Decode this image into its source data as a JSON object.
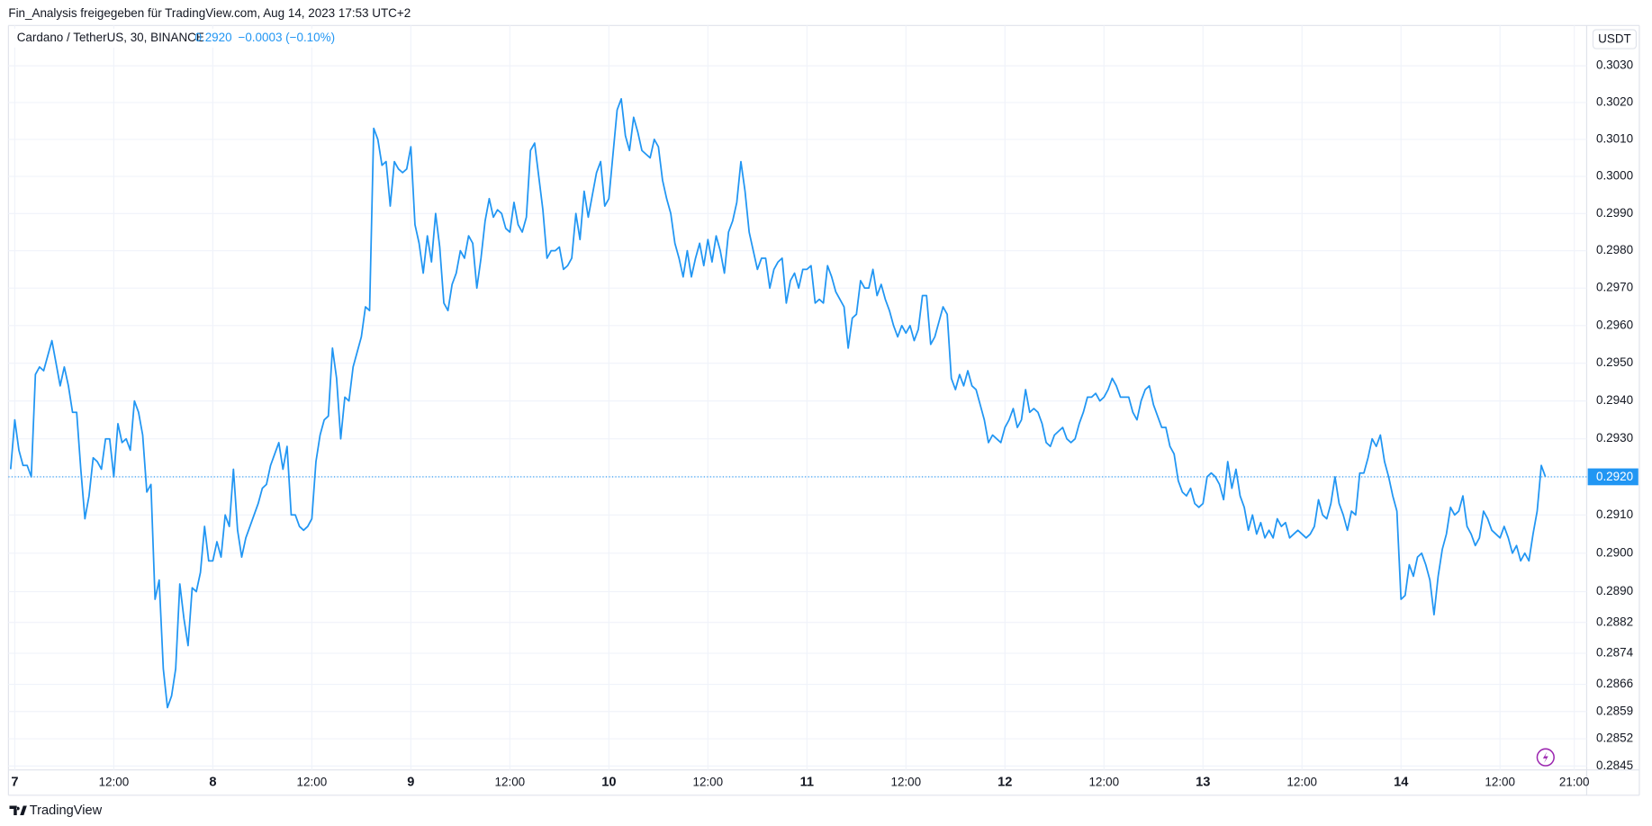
{
  "caption": "Fin_Analysis freigegeben für TradingView.com, Aug 14, 2023 17:53 UTC+2",
  "brand": "TradingView",
  "currency": "USDT",
  "chart_data": {
    "type": "line",
    "title": "Cardano / TetherUS, 30, BINANCE",
    "price": "0.2920",
    "change": "−0.0003 (−0.10%)",
    "log_scale": true,
    "grid": true,
    "xlim": [
      -0.77,
      190.5
    ],
    "xticks": [
      {
        "value": 0,
        "label": "7"
      },
      {
        "value": 12,
        "label": "12:00"
      },
      {
        "value": 24,
        "label": "8"
      },
      {
        "value": 36,
        "label": "12:00"
      },
      {
        "value": 48,
        "label": "9"
      },
      {
        "value": 60,
        "label": "12:00"
      },
      {
        "value": 72,
        "label": "10"
      },
      {
        "value": 84,
        "label": "12:00"
      },
      {
        "value": 96,
        "label": "11"
      },
      {
        "value": 108,
        "label": "12:00"
      },
      {
        "value": 120,
        "label": "12"
      },
      {
        "value": 132,
        "label": "12:00"
      },
      {
        "value": 144,
        "label": "13"
      },
      {
        "value": 156,
        "label": "12:00"
      },
      {
        "value": 168,
        "label": "14"
      },
      {
        "value": 180,
        "label": "12:00"
      },
      {
        "value": 189,
        "label": "21:00"
      }
    ],
    "ylim": [
      0.2844,
      0.3041
    ],
    "yticks": [
      {
        "value": 0.303,
        "label": "0.3030"
      },
      {
        "value": 0.302,
        "label": "0.3020"
      },
      {
        "value": 0.301,
        "label": "0.3010"
      },
      {
        "value": 0.3,
        "label": "0.3000"
      },
      {
        "value": 0.299,
        "label": "0.2990"
      },
      {
        "value": 0.298,
        "label": "0.2980"
      },
      {
        "value": 0.297,
        "label": "0.2970"
      },
      {
        "value": 0.296,
        "label": "0.2960"
      },
      {
        "value": 0.295,
        "label": "0.2950"
      },
      {
        "value": 0.294,
        "label": "0.2940"
      },
      {
        "value": 0.293,
        "label": "0.2930"
      },
      {
        "value": 0.292,
        "label": "0.2920"
      },
      {
        "value": 0.291,
        "label": "0.2910"
      },
      {
        "value": 0.29,
        "label": "0.2900"
      },
      {
        "value": 0.289,
        "label": "0.2890"
      },
      0.2882,
      0.2874,
      0.2866,
      0.2859,
      0.2852,
      0.2845
    ],
    "x": [
      -0.5,
      0,
      0.5,
      1,
      1.5,
      2,
      2.5,
      3,
      3.5,
      4,
      4.5,
      5,
      5.5,
      6,
      6.5,
      7,
      7.5,
      8,
      8.5,
      9,
      9.5,
      10,
      10.5,
      11,
      11.5,
      12,
      12.5,
      13,
      13.5,
      14,
      14.5,
      15,
      15.5,
      16,
      16.5,
      17,
      17.5,
      18,
      18.5,
      19,
      19.5,
      20,
      20.5,
      21,
      21.5,
      22,
      22.5,
      23,
      23.5,
      24,
      24.5,
      25,
      25.5,
      26,
      26.5,
      27,
      27.5,
      28,
      28.5,
      29,
      29.5,
      30,
      30.5,
      31,
      31.5,
      32,
      32.5,
      33,
      33.5,
      34,
      34.5,
      35,
      35.5,
      36,
      36.5,
      37,
      37.5,
      38,
      38.5,
      39,
      39.5,
      40,
      40.5,
      41,
      41.5,
      42,
      42.5,
      43,
      43.5,
      44,
      44.5,
      45,
      45.5,
      46,
      46.5,
      47,
      47.5,
      48,
      48.5,
      49,
      49.5,
      50,
      50.5,
      51,
      51.5,
      52,
      52.5,
      53,
      53.5,
      54,
      54.5,
      55,
      55.5,
      56,
      56.5,
      57,
      57.5,
      58,
      58.5,
      59,
      59.5,
      60,
      60.5,
      61,
      61.5,
      62,
      62.5,
      63,
      63.5,
      64,
      64.5,
      65,
      65.5,
      66,
      66.5,
      67,
      67.5,
      68,
      68.5,
      69,
      69.5,
      70,
      70.5,
      71,
      71.5,
      72,
      72.5,
      73,
      73.5,
      74,
      74.5,
      75,
      75.5,
      76,
      76.5,
      77,
      77.5,
      78,
      78.5,
      79,
      79.5,
      80,
      80.5,
      81,
      81.5,
      82,
      82.5,
      83,
      83.5,
      84,
      84.5,
      85,
      85.5,
      86,
      86.5,
      87,
      87.5,
      88,
      88.5,
      89,
      89.5,
      90,
      90.5,
      91,
      91.5,
      92,
      92.5,
      93,
      93.5,
      94,
      94.5,
      95,
      95.5,
      96,
      96.5,
      97,
      97.5,
      98,
      98.5,
      99,
      99.5,
      100,
      100.5,
      101,
      101.5,
      102,
      102.5,
      103,
      103.5,
      104,
      104.5,
      105,
      105.5,
      106,
      106.5,
      107,
      107.5,
      108,
      108.5,
      109,
      109.5,
      110,
      110.5,
      111,
      111.5,
      112,
      112.5,
      113,
      113.5,
      114,
      114.5,
      115,
      115.5,
      116,
      116.5,
      117,
      117.5,
      118,
      118.5,
      119,
      119.5,
      120,
      120.5,
      121,
      121.5,
      122,
      122.5,
      123,
      123.5,
      124,
      124.5,
      125,
      125.5,
      126,
      126.5,
      127,
      127.5,
      128,
      128.5,
      129,
      129.5,
      130,
      130.5,
      131,
      131.5,
      132,
      132.5,
      133,
      133.5,
      134,
      134.5,
      135,
      135.5,
      136,
      136.5,
      137,
      137.5,
      138,
      138.5,
      139,
      139.5,
      140,
      140.5,
      141,
      141.5,
      142,
      142.5,
      143,
      143.5,
      144,
      144.5,
      145,
      145.5,
      146,
      146.5,
      147,
      147.5,
      148,
      148.5,
      149,
      149.5,
      150,
      150.5,
      151,
      151.5,
      152,
      152.5,
      153,
      153.5,
      154,
      154.5,
      155,
      155.5,
      156,
      156.5,
      157,
      157.5,
      158,
      158.5,
      159,
      159.5,
      160,
      160.5,
      161,
      161.5,
      162,
      162.5,
      163,
      163.5,
      164,
      164.5,
      165,
      165.5,
      166,
      166.5,
      167,
      167.5,
      168,
      168.5,
      169,
      169.5,
      170,
      170.5,
      171,
      171.5,
      172,
      172.5,
      173,
      173.5,
      174,
      174.5,
      175,
      175.5,
      176,
      176.5,
      177,
      177.5,
      178,
      178.5,
      179,
      179.5,
      180,
      180.5,
      181,
      181.5,
      182,
      182.5,
      183,
      183.5,
      184,
      184.5,
      185,
      185.5
    ],
    "series": [
      {
        "color": "#2196f3",
        "values": [
          0.2922,
          0.2935,
          0.2927,
          0.2923,
          0.2923,
          0.292,
          0.2947,
          0.2949,
          0.2948,
          0.2952,
          0.2956,
          0.295,
          0.2944,
          0.2949,
          0.2944,
          0.2937,
          0.2937,
          0.2922,
          0.2909,
          0.2915,
          0.2925,
          0.2924,
          0.2922,
          0.293,
          0.293,
          0.292,
          0.2934,
          0.2929,
          0.293,
          0.2927,
          0.294,
          0.2937,
          0.2931,
          0.2916,
          0.2918,
          0.2888,
          0.2893,
          0.287,
          0.286,
          0.2863,
          0.287,
          0.2892,
          0.2883,
          0.2876,
          0.2891,
          0.289,
          0.2895,
          0.2907,
          0.2898,
          0.2898,
          0.2903,
          0.2899,
          0.291,
          0.2907,
          0.2922,
          0.2906,
          0.2899,
          0.2904,
          0.2907,
          0.291,
          0.2913,
          0.2917,
          0.2918,
          0.2923,
          0.2926,
          0.2929,
          0.2922,
          0.2928,
          0.291,
          0.291,
          0.2907,
          0.2906,
          0.2907,
          0.2909,
          0.2924,
          0.2931,
          0.2935,
          0.2936,
          0.2954,
          0.2946,
          0.293,
          0.2941,
          0.294,
          0.2949,
          0.2953,
          0.2957,
          0.2965,
          0.2964,
          0.3013,
          0.301,
          0.3003,
          0.3004,
          0.2992,
          0.3004,
          0.3002,
          0.3001,
          0.3002,
          0.3008,
          0.2987,
          0.2982,
          0.2974,
          0.2984,
          0.2977,
          0.299,
          0.2981,
          0.2966,
          0.2964,
          0.2971,
          0.2974,
          0.298,
          0.2978,
          0.2984,
          0.2982,
          0.297,
          0.2978,
          0.2988,
          0.2994,
          0.2989,
          0.2991,
          0.299,
          0.2986,
          0.2985,
          0.2993,
          0.2987,
          0.2985,
          0.2989,
          0.3007,
          0.3009,
          0.3,
          0.2991,
          0.2978,
          0.298,
          0.298,
          0.2981,
          0.2975,
          0.2976,
          0.2978,
          0.299,
          0.2983,
          0.2996,
          0.2989,
          0.2995,
          0.3001,
          0.3004,
          0.2992,
          0.2994,
          0.3006,
          0.3018,
          0.3021,
          0.3011,
          0.3007,
          0.3016,
          0.3012,
          0.3007,
          0.3006,
          0.3005,
          0.301,
          0.3008,
          0.2999,
          0.2994,
          0.299,
          0.2982,
          0.2978,
          0.2973,
          0.298,
          0.2973,
          0.2978,
          0.2982,
          0.2976,
          0.2983,
          0.2977,
          0.2984,
          0.298,
          0.2974,
          0.2985,
          0.2988,
          0.2993,
          0.3004,
          0.2996,
          0.2985,
          0.298,
          0.2975,
          0.2978,
          0.2978,
          0.297,
          0.2975,
          0.2977,
          0.2978,
          0.2966,
          0.2972,
          0.2974,
          0.297,
          0.2975,
          0.2975,
          0.2976,
          0.2966,
          0.2967,
          0.2966,
          0.2976,
          0.2973,
          0.2969,
          0.2967,
          0.2965,
          0.2954,
          0.2962,
          0.2963,
          0.2972,
          0.297,
          0.297,
          0.2975,
          0.2968,
          0.2971,
          0.2967,
          0.2964,
          0.296,
          0.2957,
          0.296,
          0.2958,
          0.296,
          0.2956,
          0.2959,
          0.2968,
          0.2968,
          0.2955,
          0.2957,
          0.2961,
          0.2965,
          0.2963,
          0.2946,
          0.2943,
          0.2947,
          0.2944,
          0.2948,
          0.2944,
          0.2943,
          0.2939,
          0.2935,
          0.2929,
          0.2931,
          0.293,
          0.2929,
          0.2933,
          0.2935,
          0.2938,
          0.2933,
          0.2935,
          0.2943,
          0.2937,
          0.2938,
          0.2937,
          0.2934,
          0.2929,
          0.2928,
          0.2931,
          0.2932,
          0.2933,
          0.293,
          0.2929,
          0.293,
          0.2934,
          0.2937,
          0.2941,
          0.2941,
          0.2942,
          0.294,
          0.2941,
          0.2943,
          0.2946,
          0.2944,
          0.2941,
          0.2941,
          0.2941,
          0.2937,
          0.2935,
          0.294,
          0.2943,
          0.2944,
          0.2939,
          0.2936,
          0.2933,
          0.2933,
          0.2928,
          0.2926,
          0.2919,
          0.2916,
          0.2915,
          0.2917,
          0.2913,
          0.2912,
          0.2913,
          0.292,
          0.2921,
          0.292,
          0.2918,
          0.2914,
          0.2924,
          0.2917,
          0.2922,
          0.2915,
          0.2912,
          0.2906,
          0.291,
          0.2905,
          0.2908,
          0.2904,
          0.2906,
          0.2904,
          0.2909,
          0.2907,
          0.2908,
          0.2904,
          0.2905,
          0.2906,
          0.2905,
          0.2904,
          0.2905,
          0.2907,
          0.2914,
          0.291,
          0.2909,
          0.2913,
          0.292,
          0.2913,
          0.291,
          0.2906,
          0.2911,
          0.291,
          0.2921,
          0.2921,
          0.2925,
          0.293,
          0.2928,
          0.2931,
          0.2924,
          0.292,
          0.2915,
          0.2911,
          0.2888,
          0.2889,
          0.2897,
          0.2894,
          0.2899,
          0.29,
          0.2897,
          0.2893,
          0.2884,
          0.2894,
          0.2901,
          0.2905,
          0.2912,
          0.291,
          0.2911,
          0.2915,
          0.2907,
          0.2905,
          0.2902,
          0.2904,
          0.2911,
          0.2909,
          0.2906,
          0.2905,
          0.2904,
          0.2907,
          0.2904,
          0.29,
          0.2902,
          0.2898,
          0.29,
          0.2898,
          0.2905,
          0.2911,
          0.2923,
          0.292
        ]
      }
    ]
  }
}
